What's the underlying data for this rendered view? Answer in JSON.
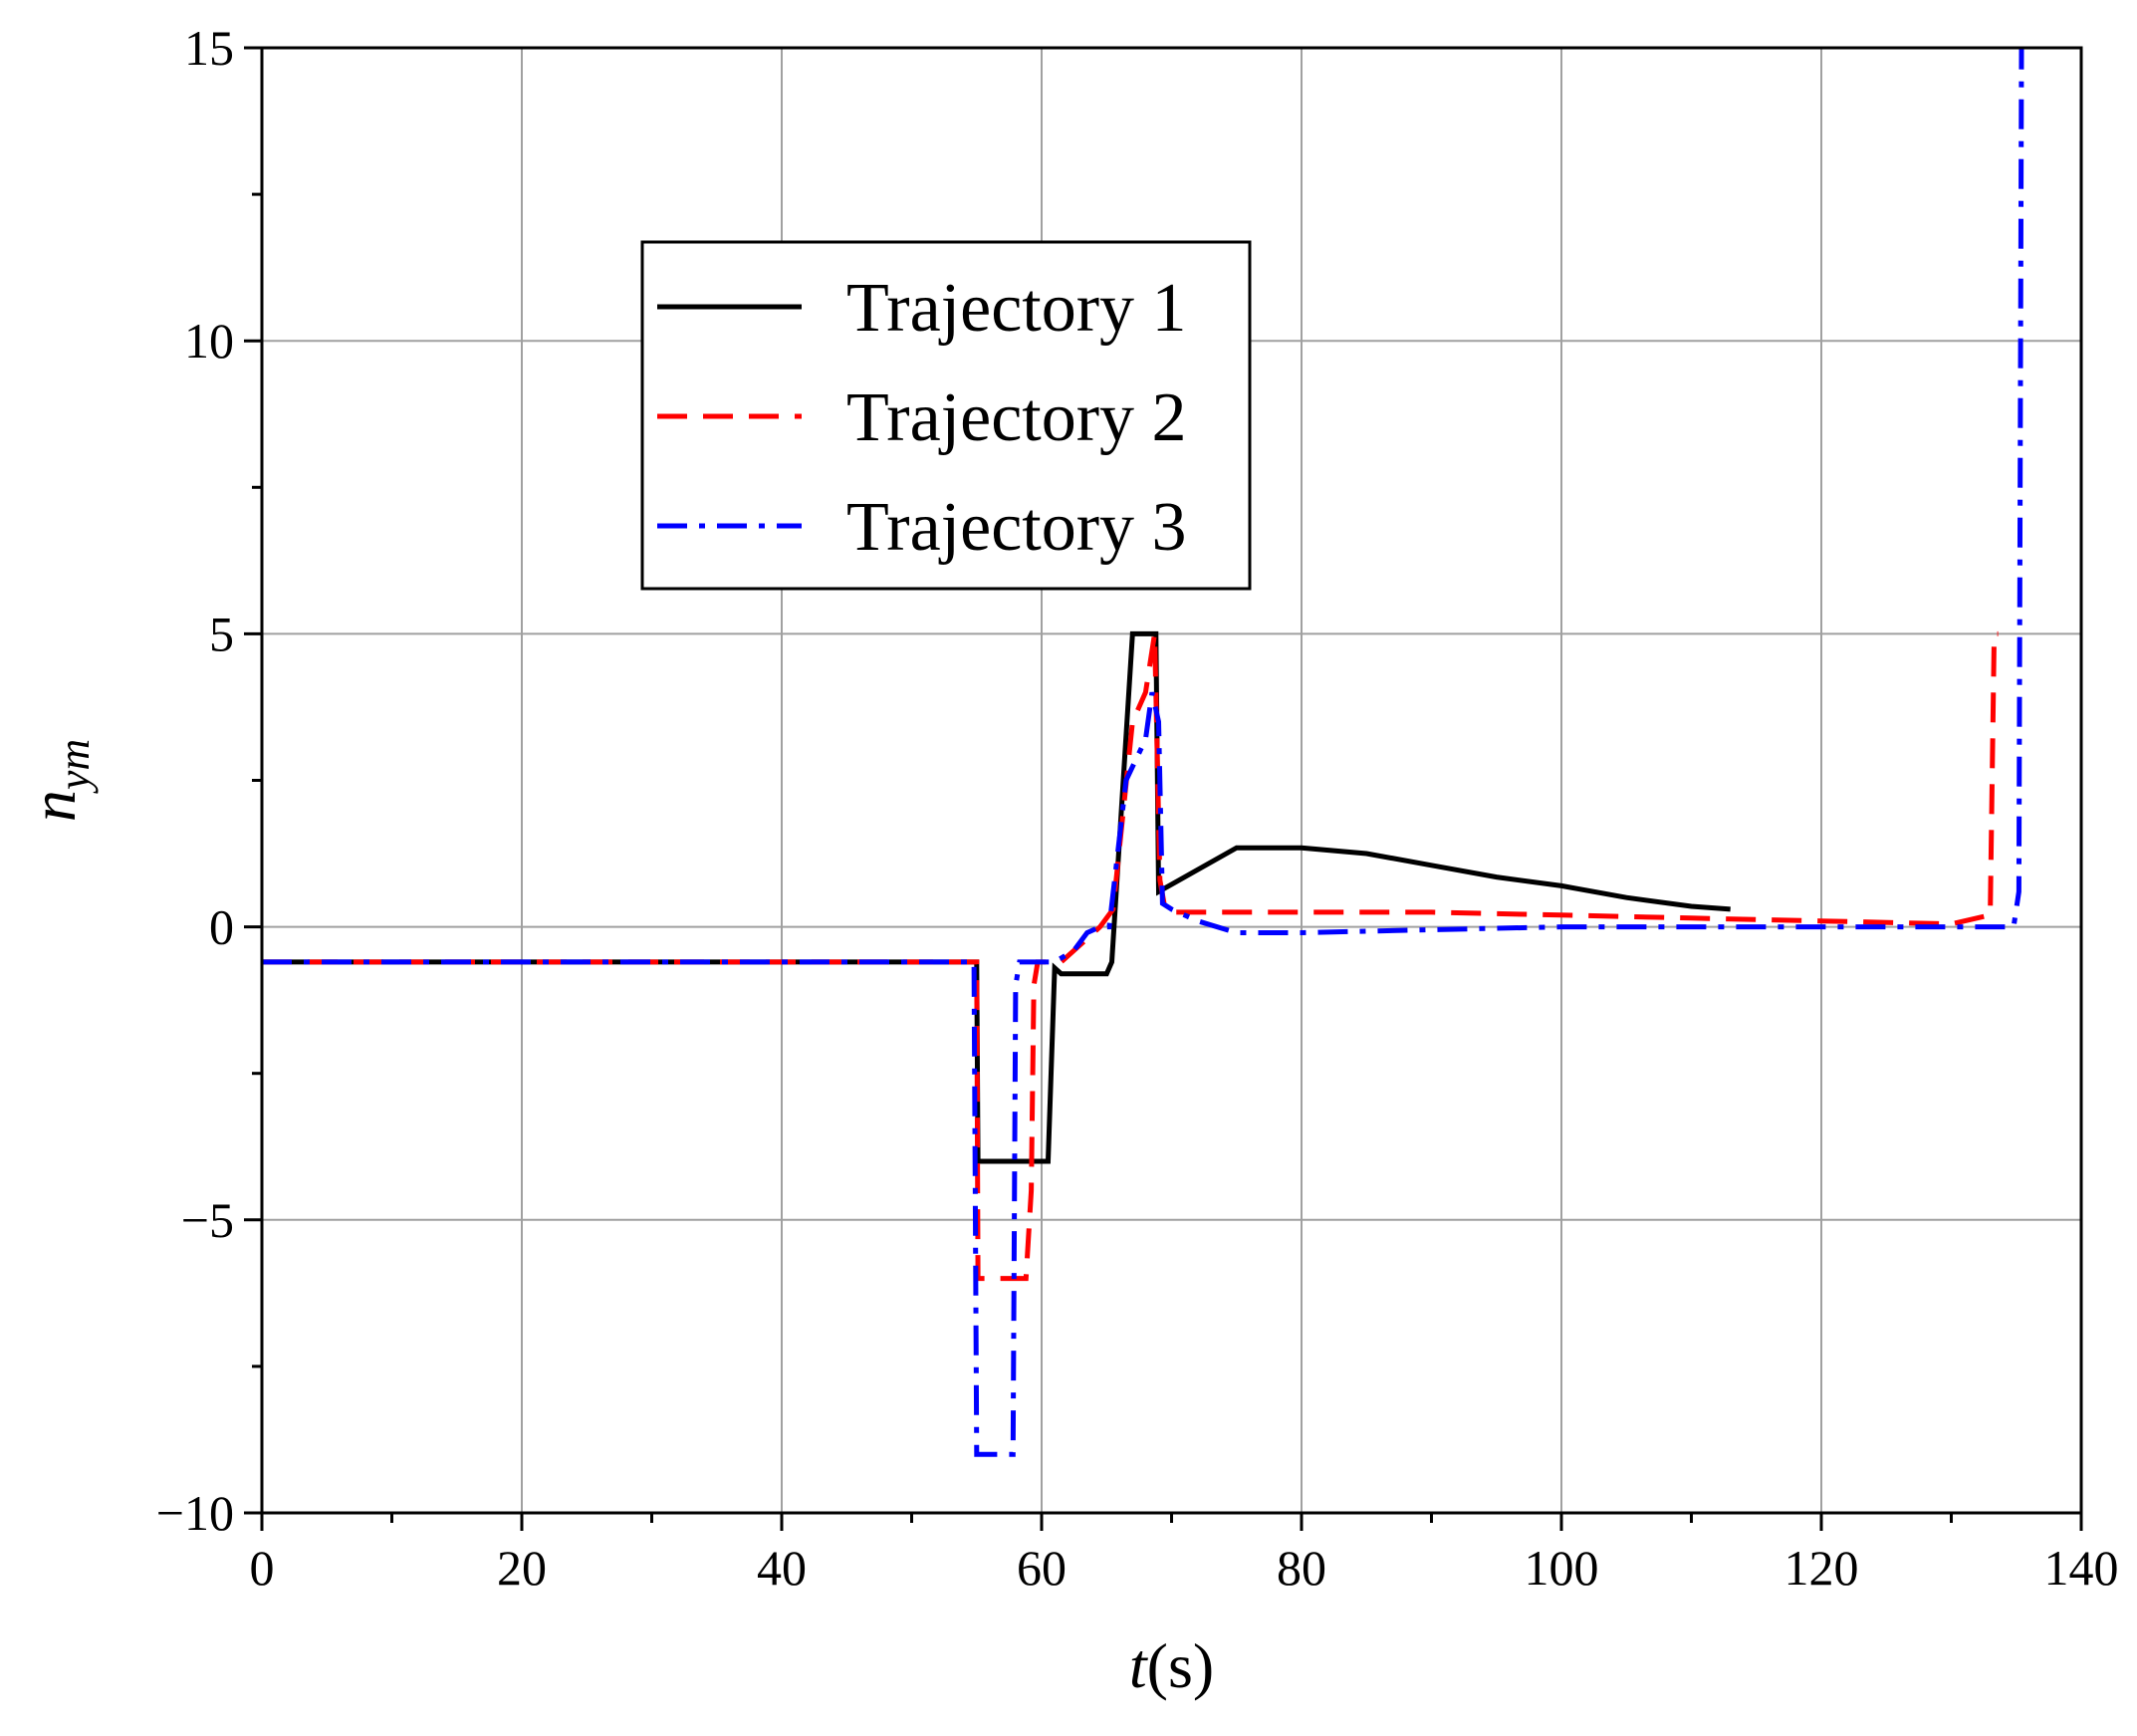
{
  "chart_data": {
    "type": "line",
    "xlabel_var": "t",
    "xlabel_unit": "(s)",
    "ylabel_base": "n",
    "ylabel_sub": "ym",
    "xlim": [
      0,
      140
    ],
    "ylim": [
      -10,
      15
    ],
    "xticks": [
      0,
      20,
      40,
      60,
      80,
      100,
      120,
      140
    ],
    "xtick_labels": [
      "0",
      "20",
      "40",
      "60",
      "80",
      "100",
      "120",
      "140"
    ],
    "yticks": [
      -10,
      -5,
      0,
      5,
      10,
      15
    ],
    "ytick_labels": [
      "−10",
      "−5",
      "0",
      "5",
      "10",
      "15"
    ],
    "grid": true,
    "legend_position": "upper-left",
    "series": [
      {
        "name": "Trajectory 1",
        "color": "#000000",
        "style": "solid",
        "x": [
          0,
          55,
          55.1,
          60.5,
          61,
          61.5,
          65,
          65.4,
          67,
          68.8,
          69,
          75,
          80,
          85,
          90,
          95,
          100,
          105,
          110,
          113
        ],
        "y": [
          -0.6,
          -0.6,
          -4.0,
          -4.0,
          -0.7,
          -0.8,
          -0.8,
          -0.6,
          5.0,
          5.0,
          0.6,
          1.35,
          1.35,
          1.25,
          1.05,
          0.85,
          0.7,
          0.5,
          0.35,
          0.3
        ]
      },
      {
        "name": "Trajectory 2",
        "color": "#ff0000",
        "style": "dashed",
        "x": [
          0,
          55,
          55.1,
          58.8,
          59.2,
          59.4,
          59.7,
          61.5,
          63,
          64.5,
          65.5,
          67,
          68,
          68.7,
          69.1,
          69.5,
          70,
          80,
          90,
          100,
          110,
          120,
          130,
          133,
          133.3,
          133.6
        ],
        "y": [
          -0.6,
          -0.6,
          -6.0,
          -6.0,
          -4.5,
          -1.0,
          -0.6,
          -0.6,
          -0.3,
          0.0,
          0.3,
          3.5,
          4.0,
          5.0,
          0.8,
          0.3,
          0.25,
          0.25,
          0.25,
          0.2,
          0.15,
          0.1,
          0.05,
          0.2,
          5.0,
          5.0
        ]
      },
      {
        "name": "Trajectory 3",
        "color": "#0000ff",
        "style": "dashdot",
        "x": [
          0,
          54.8,
          55,
          57.8,
          58,
          58.3,
          59,
          61,
          62.5,
          63.5,
          64.5,
          65.2,
          66.5,
          68,
          68.5,
          69,
          69.3,
          70,
          72,
          75,
          80,
          90,
          100,
          110,
          120,
          130,
          134.8,
          135.2,
          135.4
        ],
        "y": [
          -0.6,
          -0.6,
          -9.0,
          -9.0,
          -1.0,
          -0.6,
          -0.6,
          -0.6,
          -0.4,
          -0.1,
          0.0,
          0.0,
          2.5,
          3.2,
          4.0,
          3.5,
          0.4,
          0.3,
          0.1,
          -0.1,
          -0.1,
          -0.05,
          0.0,
          0.0,
          0.0,
          0.0,
          0.0,
          0.6,
          15.0
        ]
      }
    ]
  }
}
